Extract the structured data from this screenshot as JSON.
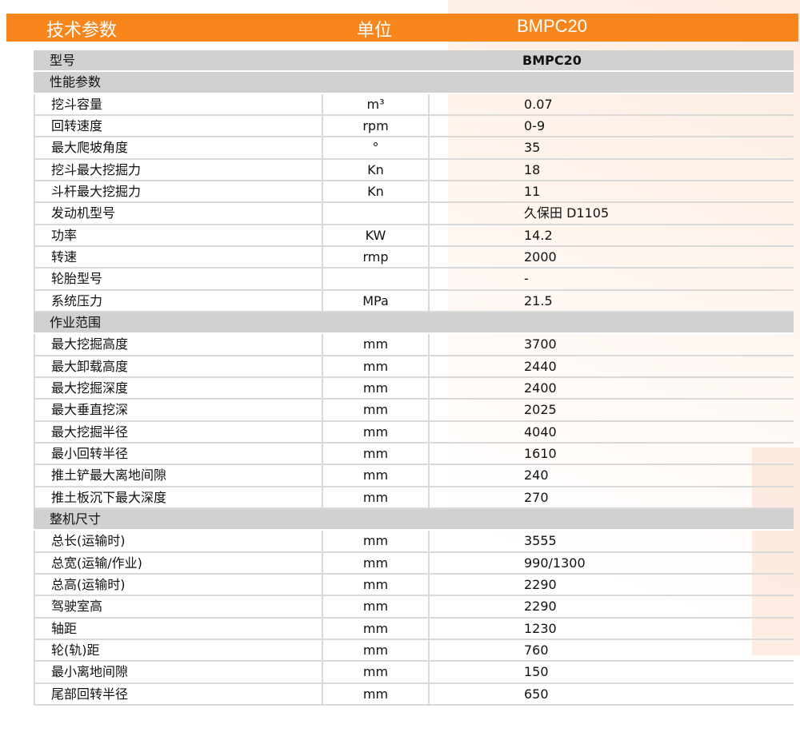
{
  "header": {
    "param": "技术参数",
    "unit": "单位",
    "model": "BMPC20"
  },
  "model_row": {
    "label": "型号",
    "value": "BMPC20"
  },
  "sections": [
    {
      "title": "性能参数",
      "rows": [
        [
          "挖斗容量",
          "m³",
          "0.07"
        ],
        [
          "回转速度",
          "rpm",
          "0-9"
        ],
        [
          "最大爬坡角度",
          "°",
          "35"
        ],
        [
          "挖斗最大挖掘力",
          "Kn",
          "18"
        ],
        [
          "斗杆最大挖掘力",
          "Kn",
          "11"
        ],
        [
          "发动机型号",
          "",
          "久保田 D1105"
        ],
        [
          "功率",
          "KW",
          "14.2"
        ],
        [
          "转速",
          "rmp",
          "2000"
        ],
        [
          "轮胎型号",
          "",
          "-"
        ],
        [
          "系统压力",
          "MPa",
          "21.5"
        ]
      ]
    },
    {
      "title": "作业范围",
      "rows": [
        [
          "最大挖掘高度",
          "mm",
          "3700"
        ],
        [
          "最大卸载高度",
          "mm",
          "2440"
        ],
        [
          "最大挖掘深度",
          "mm",
          "2400"
        ],
        [
          "最大垂直挖深",
          "mm",
          "2025"
        ],
        [
          "最大挖掘半径",
          "mm",
          "4040"
        ],
        [
          "最小回转半径",
          "mm",
          "1610"
        ],
        [
          "推土铲最大离地间隙",
          "mm",
          "240"
        ],
        [
          "推土板沉下最大深度",
          "mm",
          "270"
        ]
      ]
    },
    {
      "title": "整机尺寸",
      "rows": [
        [
          "总长(运输时)",
          "mm",
          "3555"
        ],
        [
          "总宽(运输/作业)",
          "mm",
          "990/1300"
        ],
        [
          "总高(运输时)",
          "mm",
          "2290"
        ],
        [
          "驾驶室高",
          "mm",
          "2290"
        ],
        [
          "轴距",
          "mm",
          "1230"
        ],
        [
          "轮(轨)距",
          "mm",
          "760"
        ],
        [
          "最小离地间隙",
          "mm",
          "150"
        ],
        [
          "尾部回转半径",
          "mm",
          "650"
        ]
      ]
    }
  ],
  "colors": {
    "header": "#f8861c",
    "section": "#d1d1cf"
  }
}
